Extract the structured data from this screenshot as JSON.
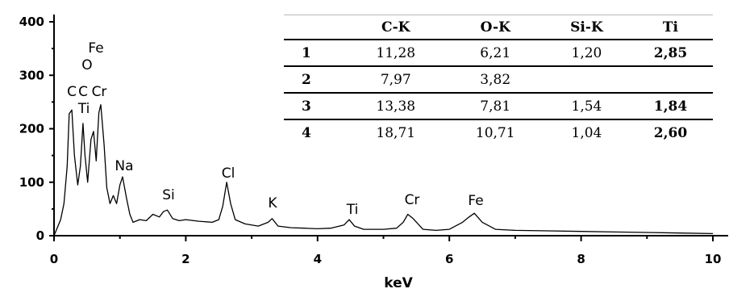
{
  "chart_data": {
    "type": "line",
    "xlabel": "keV",
    "ylabel": "",
    "xlim": [
      0,
      10
    ],
    "ylim": [
      0,
      420
    ],
    "xticks": [
      "0",
      "2",
      "4",
      "6",
      "8",
      "10"
    ],
    "yticks": [
      "0",
      "100",
      "200",
      "300",
      "400"
    ],
    "series": [
      {
        "x": [
          0.0,
          0.1,
          0.15,
          0.2,
          0.23,
          0.27,
          0.31,
          0.36,
          0.4,
          0.44,
          0.47,
          0.51,
          0.56,
          0.6,
          0.64,
          0.68,
          0.71,
          0.76,
          0.8,
          0.85,
          0.9,
          0.95,
          1.0,
          1.04,
          1.1,
          1.15,
          1.2,
          1.3,
          1.4,
          1.5,
          1.6,
          1.66,
          1.72,
          1.8,
          1.9,
          2.0,
          2.2,
          2.4,
          2.5,
          2.56,
          2.62,
          2.68,
          2.75,
          2.9,
          3.1,
          3.25,
          3.31,
          3.4,
          3.6,
          3.8,
          4.0,
          4.2,
          4.4,
          4.48,
          4.56,
          4.7,
          5.0,
          5.2,
          5.3,
          5.37,
          5.45,
          5.6,
          5.8,
          6.0,
          6.2,
          6.3,
          6.38,
          6.5,
          6.7,
          7.0,
          7.5,
          8.0,
          8.5,
          9.0,
          9.5,
          10.0
        ],
        "y": [
          0,
          30,
          60,
          130,
          228,
          235,
          150,
          95,
          130,
          210,
          150,
          100,
          180,
          195,
          140,
          230,
          245,
          170,
          90,
          60,
          75,
          60,
          95,
          110,
          70,
          40,
          25,
          30,
          28,
          40,
          35,
          45,
          48,
          32,
          28,
          30,
          27,
          25,
          30,
          55,
          100,
          60,
          30,
          22,
          18,
          25,
          32,
          18,
          15,
          14,
          13,
          14,
          20,
          30,
          18,
          12,
          12,
          14,
          25,
          40,
          32,
          12,
          10,
          12,
          25,
          35,
          42,
          25,
          12,
          10,
          9,
          8,
          7,
          6,
          5,
          4
        ]
      }
    ],
    "annotations": [
      "C",
      "O",
      "Fe",
      "C",
      "Cr",
      "Ti",
      "Na",
      "Si",
      "Cl",
      "K",
      "Ti",
      "Cr",
      "Fe"
    ],
    "table": {
      "columns": [
        "",
        "C-K",
        "O-K",
        "Si-K",
        "Ti"
      ],
      "rows": [
        [
          "1",
          "11,28",
          "6,21",
          "1,20",
          "2,85"
        ],
        [
          "2",
          "7,97",
          "3,82",
          "",
          ""
        ],
        [
          "3",
          "13,38",
          "7,81",
          "1,54",
          "1,84"
        ],
        [
          "4",
          "18,71",
          "10,71",
          "1,04",
          "2,60"
        ]
      ]
    }
  }
}
